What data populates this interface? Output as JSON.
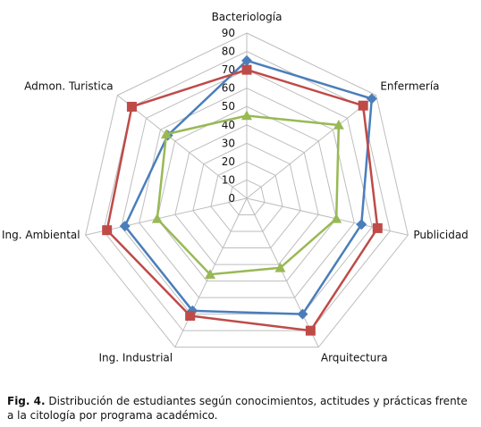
{
  "chart_data": {
    "type": "radar",
    "categories": [
      "Bacteriología",
      "Enfermería",
      "Publicidad",
      "Arquitectura",
      "Ing. Industrial",
      "Ing. Ambiental",
      "Admon. Turistica"
    ],
    "rlim": [
      0,
      90
    ],
    "rticks": [
      0,
      10,
      20,
      30,
      40,
      50,
      60,
      70,
      80,
      90
    ],
    "grid": true,
    "series": [
      {
        "values": [
          75,
          87,
          64,
          70,
          68,
          68,
          55
        ],
        "color": "#4a7ebb",
        "marker": "diamond"
      },
      {
        "values": [
          70,
          81,
          73,
          80,
          71,
          78,
          80
        ],
        "color": "#be4b48",
        "marker": "square"
      },
      {
        "values": [
          45,
          64,
          50,
          42,
          46,
          50,
          56
        ],
        "color": "#98b954",
        "marker": "triangle"
      }
    ]
  },
  "caption": {
    "label": "Fig. 4.",
    "text": "Distribución de estudiantes según conocimientos, actitudes y prácticas frente a la citología por programa académico."
  }
}
